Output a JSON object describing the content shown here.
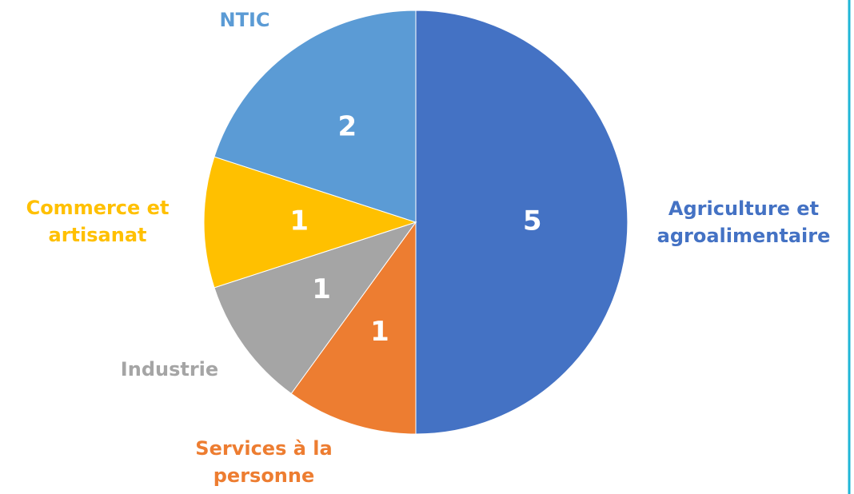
{
  "chart_data": {
    "type": "pie",
    "categories": [
      "Agriculture et agroalimentaire",
      "Services à la personne",
      "Industrie",
      "Commerce et artisanat",
      "NTIC"
    ],
    "values": [
      5,
      1,
      1,
      1,
      2
    ],
    "colors": [
      "#4472c4",
      "#ed7d31",
      "#a5a5a5",
      "#ffc000",
      "#5b9bd5"
    ]
  }
}
